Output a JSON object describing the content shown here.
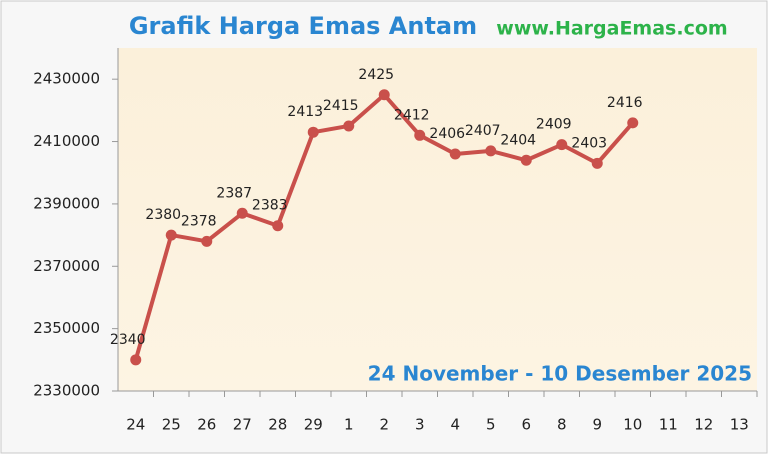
{
  "chart_data": {
    "type": "line",
    "title": "Grafik Harga Emas Antam",
    "subtitle": "www.HargaEmas.com",
    "annotation": "24 November - 10 Desember 2025",
    "categories": [
      "24",
      "25",
      "26",
      "27",
      "28",
      "29",
      "1",
      "2",
      "3",
      "4",
      "5",
      "6",
      "8",
      "9",
      "10",
      "11",
      "12",
      "13"
    ],
    "series": [
      {
        "name": "Harga Emas Antam",
        "color": "#c9504b",
        "values": [
          2340000,
          2380000,
          2378000,
          2387000,
          2383000,
          2413000,
          2415000,
          2425000,
          2412000,
          2406000,
          2407000,
          2404000,
          2409000,
          2403000,
          2416000,
          null,
          null,
          null
        ],
        "value_labels": [
          "2340",
          "2380",
          "2378",
          "2387",
          "2383",
          "2413",
          "2415",
          "2425",
          "2412",
          "2406",
          "2407",
          "2404",
          "2409",
          "2403",
          "2416",
          null,
          null,
          null
        ]
      }
    ],
    "ylim": [
      2330000,
      2440000
    ],
    "yticks": [
      2330000,
      2350000,
      2370000,
      2390000,
      2410000,
      2430000
    ],
    "grid": false,
    "legend": false
  }
}
